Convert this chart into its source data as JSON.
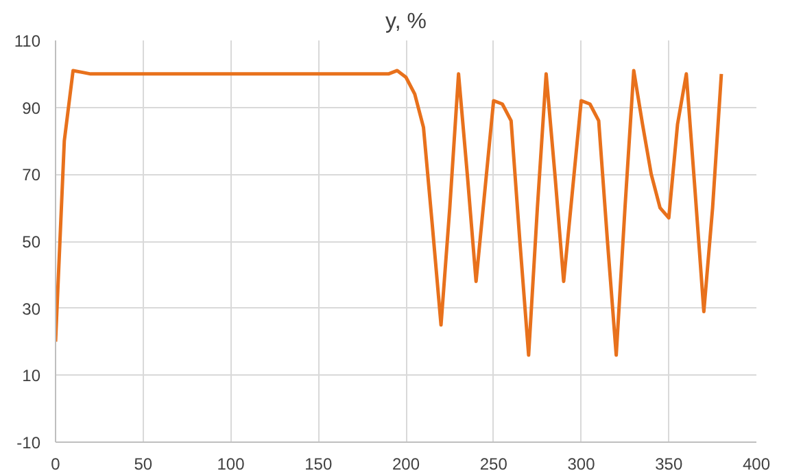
{
  "chart_data": {
    "type": "line",
    "title": "y, %",
    "x": [
      0,
      5,
      10,
      15,
      20,
      190,
      195,
      200,
      205,
      210,
      215,
      220,
      225,
      230,
      235,
      240,
      245,
      250,
      255,
      260,
      265,
      270,
      275,
      280,
      285,
      290,
      295,
      300,
      305,
      310,
      315,
      320,
      325,
      330,
      335,
      340,
      345,
      350,
      355,
      360,
      365,
      370,
      375,
      380
    ],
    "series": [
      {
        "color": "#e8711c",
        "values": [
          20,
          80,
          101,
          100.5,
          100,
          100,
          101,
          99,
          94,
          84,
          55,
          25,
          60,
          100,
          70,
          38,
          65,
          92,
          91,
          86,
          50,
          16,
          60,
          100,
          70,
          38,
          65,
          92,
          91,
          86,
          50,
          16,
          60,
          101,
          85,
          70,
          60,
          57,
          85,
          100,
          65,
          29,
          60,
          100
        ]
      }
    ],
    "xlim": [
      0,
      400
    ],
    "xticks": [
      0,
      50,
      100,
      150,
      200,
      250,
      300,
      350,
      400
    ],
    "ylim": [
      -10,
      110
    ],
    "yticks": [
      -10,
      10,
      30,
      50,
      70,
      90,
      110
    ],
    "grid": true,
    "marker": "none",
    "line_style": "solid"
  }
}
